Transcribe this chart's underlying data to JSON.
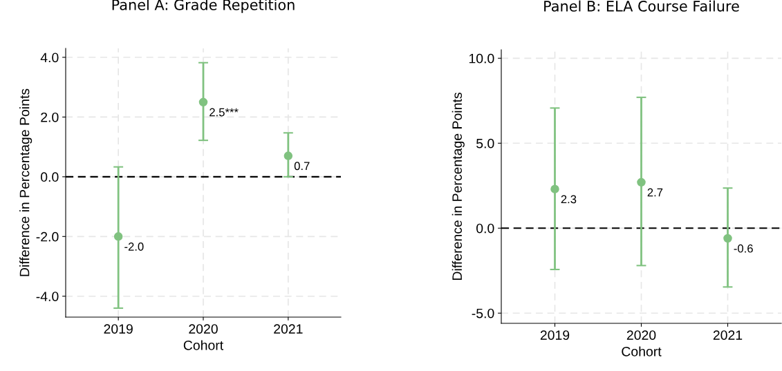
{
  "chart_data": [
    {
      "type": "scatter",
      "title": "Panel A: Grade Repetition",
      "xlabel": "Cohort",
      "ylabel": "Difference in Percentage Points",
      "categories": [
        "2019",
        "2020",
        "2021"
      ],
      "values": [
        -2.0,
        2.5,
        0.7
      ],
      "value_labels": [
        "-2.0",
        "2.5***",
        "0.7"
      ],
      "errors": [
        [
          -4.4,
          0.33
        ],
        [
          1.22,
          3.82
        ],
        [
          0.0,
          1.47
        ]
      ],
      "color": "#80c280",
      "marker": "circle",
      "ylim": [
        -4.7,
        4.3
      ],
      "yticks": [
        {
          "value": -4,
          "label": "-4.0"
        },
        {
          "value": -2,
          "label": "-2.0"
        },
        {
          "value": 0,
          "label": "0.0"
        },
        {
          "value": 2,
          "label": "2.0"
        },
        {
          "value": 4,
          "label": "4.0"
        }
      ],
      "grid": true,
      "ref_lines": [
        {
          "axis": "y",
          "value": 0,
          "color": "#000000",
          "line_style": "dashed"
        }
      ]
    },
    {
      "type": "scatter",
      "title": "Panel B: ELA Course Failure",
      "xlabel": "Cohort",
      "ylabel": "Difference in Percentage Points",
      "categories": [
        "2019",
        "2020",
        "2021"
      ],
      "values": [
        2.3,
        2.7,
        -0.6
      ],
      "value_labels": [
        "2.3",
        "2.7",
        "-0.6"
      ],
      "errors": [
        [
          -2.43,
          7.07
        ],
        [
          -2.2,
          7.7
        ],
        [
          -3.46,
          2.36
        ]
      ],
      "color": "#80c280",
      "marker": "circle",
      "ylim": [
        -5.6,
        10.5
      ],
      "yticks": [
        {
          "value": -5,
          "label": "-5.0"
        },
        {
          "value": 0,
          "label": "0.0"
        },
        {
          "value": 5,
          "label": "5.0"
        },
        {
          "value": 10,
          "label": "10.0"
        }
      ],
      "grid": true,
      "ref_lines": [
        {
          "axis": "y",
          "value": 0,
          "color": "#000000",
          "line_style": "dashed"
        }
      ]
    }
  ]
}
